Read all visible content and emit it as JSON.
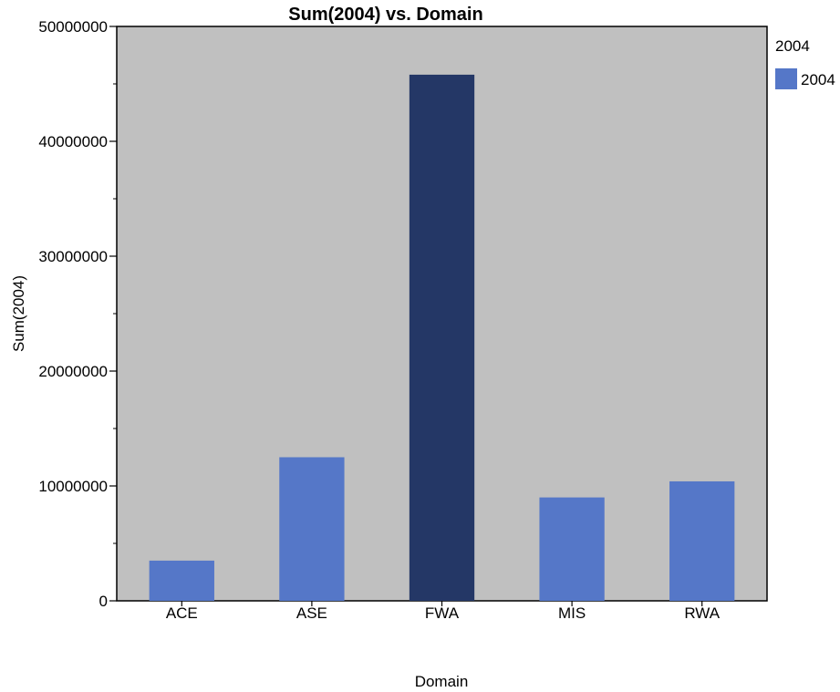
{
  "chart_data": {
    "type": "bar",
    "title": "Sum(2004) vs. Domain",
    "xlabel": "Domain",
    "ylabel": "Sum(2004)",
    "categories": [
      "ACE",
      "ASE",
      "FWA",
      "MIS",
      "RWA"
    ],
    "series": [
      {
        "name": "2004",
        "values": [
          3500000,
          12500000,
          45800000,
          9000000,
          10400000
        ]
      }
    ],
    "ylim": [
      0,
      50000000
    ],
    "yticks": [
      0,
      10000000,
      20000000,
      30000000,
      40000000,
      50000000
    ],
    "ytick_labels": [
      "0",
      "10000000",
      "20000000",
      "30000000",
      "40000000",
      "50000000"
    ],
    "grid": false,
    "legend": {
      "title": "2004",
      "position": "top-right"
    },
    "colors": {
      "bar": "#5577c8",
      "bar_highlight": "#243766",
      "plot_background": "#c0c0c0"
    },
    "highlighted_category": "FWA"
  }
}
